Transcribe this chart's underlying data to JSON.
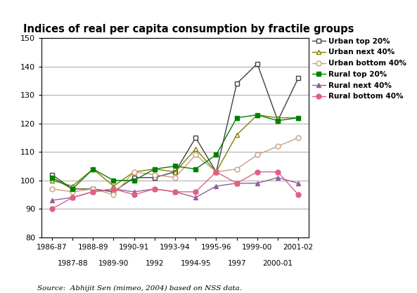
{
  "title": "Indices of real per capita consumption by fractile groups",
  "x_labels_interleaved": [
    "1986-87",
    "1987-88",
    "1988-89",
    "1989-90",
    "1990-91",
    "1992",
    "1993-94",
    "1994-95",
    "1995-96",
    "1997",
    "1999-00",
    "2000-01",
    "2001-02"
  ],
  "x_positions": [
    0,
    1,
    2,
    3,
    4,
    5,
    6,
    7,
    8,
    9,
    10,
    11,
    12
  ],
  "series": [
    {
      "name": "Urban top 20%",
      "color": "#404040",
      "marker": "s",
      "marker_facecolor": "white",
      "marker_edgecolor": "#404040",
      "linewidth": 1.0,
      "markersize": 5,
      "values": [
        102,
        97,
        97,
        96,
        101,
        101,
        103,
        115,
        103,
        134,
        141,
        121,
        136
      ]
    },
    {
      "name": "Urban next 40%",
      "color": "#808000",
      "marker": "^",
      "marker_facecolor": "white",
      "marker_edgecolor": "#808000",
      "linewidth": 1.0,
      "markersize": 5,
      "values": [
        100,
        98,
        104,
        98,
        103,
        104,
        103,
        111,
        103,
        116,
        123,
        122,
        122
      ]
    },
    {
      "name": "Urban bottom 40%",
      "color": "#c8a080",
      "marker": "o",
      "marker_facecolor": "white",
      "marker_edgecolor": "#c8a080",
      "linewidth": 1.0,
      "markersize": 5,
      "values": [
        97,
        96,
        97,
        95,
        103,
        102,
        101,
        109,
        103,
        104,
        109,
        112,
        115
      ]
    },
    {
      "name": "Rural top 20%",
      "color": "#008000",
      "marker": "s",
      "marker_facecolor": "#008000",
      "marker_edgecolor": "#008000",
      "linewidth": 1.0,
      "markersize": 5,
      "values": [
        101,
        97,
        104,
        100,
        100,
        104,
        105,
        104,
        109,
        122,
        123,
        121,
        122
      ]
    },
    {
      "name": "Rural next 40%",
      "color": "#9060a0",
      "marker": "^",
      "marker_facecolor": "#9060a0",
      "marker_edgecolor": "#9060a0",
      "linewidth": 1.0,
      "markersize": 5,
      "values": [
        93,
        94,
        96,
        97,
        96,
        97,
        96,
        94,
        98,
        99,
        99,
        101,
        99
      ]
    },
    {
      "name": "Rural bottom 40%",
      "color": "#e06080",
      "marker": "o",
      "marker_facecolor": "#e06080",
      "marker_edgecolor": "#e06080",
      "linewidth": 1.0,
      "markersize": 5,
      "values": [
        90,
        94,
        96,
        97,
        95,
        97,
        96,
        96,
        103,
        99,
        103,
        103,
        95
      ]
    }
  ],
  "ylim": [
    80,
    150
  ],
  "yticks": [
    80,
    90,
    100,
    110,
    120,
    130,
    140,
    150
  ],
  "source_text": "Source:  Abhijit Sen (mimeo, 2004) based on NSS data.",
  "background_color": "#ffffff",
  "grid_color": "#b0b0b0"
}
